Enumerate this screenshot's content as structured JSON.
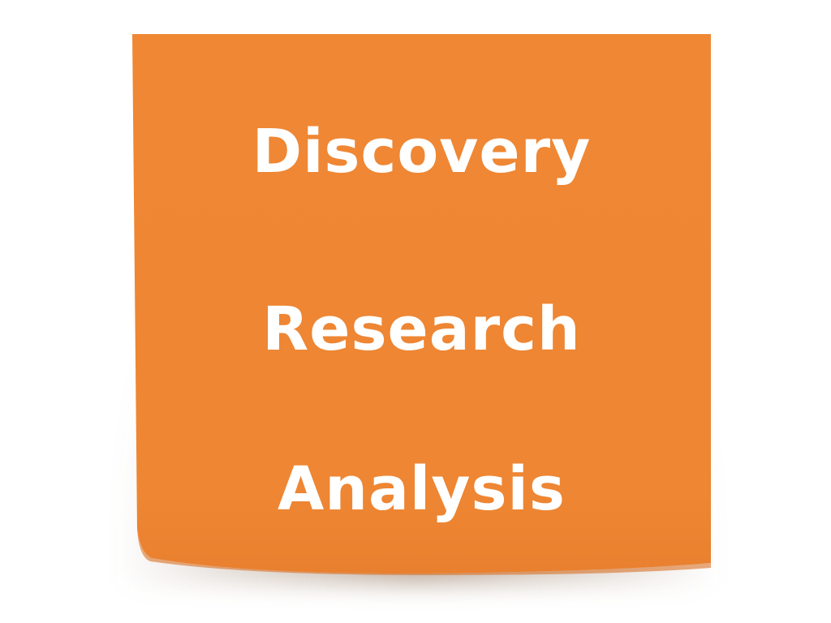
{
  "note": {
    "color": "#ee8733",
    "lines": [
      "Discovery",
      "Research",
      "Analysis"
    ]
  }
}
